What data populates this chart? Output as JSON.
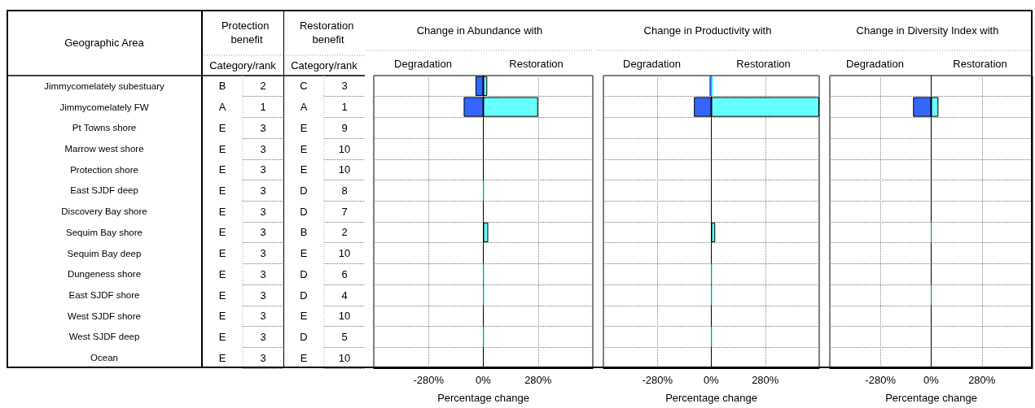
{
  "chart_data": [
    {
      "type": "other",
      "title": "Protection benefit",
      "xlabel": "Category/rank",
      "ylabel": "Geographic Area",
      "categories": [
        null
      ],
      "y_categories": [
        "Jimmycomelately subestuary",
        "Jimmycomelately FW",
        "Pt Towns shore",
        "Marrow west shore",
        "Protection shore",
        "East SJDF deep",
        "Discovery Bay shore",
        "Sequim Bay shore",
        "Sequim Bay deep",
        "Dungeness shore",
        "East SJDF shore",
        "West SJDF shore",
        "West SJDF deep",
        "Ocean"
      ],
      "y2_categories": [
        "B",
        "A",
        "E",
        "E",
        "E",
        "E",
        "E",
        "E",
        "E",
        "E",
        "E",
        "E",
        "E",
        "E"
      ],
      "cell_labels": [
        [
          "2"
        ],
        [
          "1"
        ],
        [
          "3"
        ],
        [
          "3"
        ],
        [
          "3"
        ],
        [
          "3"
        ],
        [
          "3"
        ],
        [
          "3"
        ],
        [
          "3"
        ],
        [
          "3"
        ],
        [
          "3"
        ],
        [
          "3"
        ],
        [
          "3"
        ],
        [
          "3"
        ]
      ]
    },
    {
      "type": "other",
      "title": "Restoration benefit",
      "xlabel": "Category/rank",
      "categories": [
        null
      ],
      "y2_categories": [
        "C",
        "A",
        "E",
        "E",
        "E",
        "D",
        "D",
        "B",
        "E",
        "D",
        "D",
        "E",
        "D",
        "E"
      ],
      "cell_labels": [
        [
          "3"
        ],
        [
          "1"
        ],
        [
          "9"
        ],
        [
          "10"
        ],
        [
          "10"
        ],
        [
          "8"
        ],
        [
          "7"
        ],
        [
          "2"
        ],
        [
          "10"
        ],
        [
          "6"
        ],
        [
          "4"
        ],
        [
          "10"
        ],
        [
          "5"
        ],
        [
          "10"
        ]
      ]
    },
    {
      "type": "bar",
      "orientation": "horizontal",
      "stacked": true,
      "title": "Change in Abundance with",
      "annotations": [
        "Degradation",
        "Restoration"
      ],
      "xlabel": "Percentage change",
      "grid": true,
      "categories": [
        null,
        null,
        null,
        null,
        null,
        null,
        null,
        null,
        null,
        null,
        null,
        null,
        null,
        null
      ],
      "xlim": [
        -560,
        560
      ],
      "xticks": [
        {
          "value": -280,
          "label": "-280%"
        },
        {
          "value": 0,
          "label": "0%"
        },
        {
          "value": 280,
          "label": "280%"
        }
      ],
      "series": [
        {
          "color": "#3366ff",
          "values": [
            -40,
            -100,
            null,
            null,
            null,
            null,
            null,
            null,
            null,
            null,
            null,
            null,
            null,
            null
          ]
        },
        {
          "color": "#66ffff",
          "values": [
            20,
            280,
            null,
            null,
            null,
            5,
            null,
            25,
            null,
            5,
            5,
            null,
            5,
            null
          ]
        }
      ]
    },
    {
      "type": "bar",
      "orientation": "horizontal",
      "stacked": true,
      "title": "Change in Productivity with",
      "annotations": [
        "Degradation",
        "Restoration"
      ],
      "xlabel": "Percentage change",
      "grid": true,
      "categories": [
        null,
        null,
        null,
        null,
        null,
        null,
        null,
        null,
        null,
        null,
        null,
        null,
        null,
        null
      ],
      "xlim": [
        -560,
        560
      ],
      "xticks": [
        {
          "value": -280,
          "label": "-280%"
        },
        {
          "value": 0,
          "label": "0%"
        },
        {
          "value": 280,
          "label": "280%"
        }
      ],
      "series": [
        {
          "color": "#3366ff",
          "values": [
            -10,
            -90,
            null,
            null,
            null,
            null,
            null,
            null,
            null,
            null,
            null,
            null,
            null,
            null
          ]
        },
        {
          "color": "#66ffff",
          "values": [
            10,
            560,
            null,
            null,
            null,
            null,
            null,
            20,
            null,
            5,
            5,
            null,
            5,
            null
          ]
        }
      ]
    },
    {
      "type": "bar",
      "orientation": "horizontal",
      "stacked": true,
      "title": "Change in Diversity Index with",
      "annotations": [
        "Degradation",
        "Restoration"
      ],
      "xlabel": "Percentage change",
      "grid": true,
      "categories": [
        null,
        null,
        null,
        null,
        null,
        null,
        null,
        null,
        null,
        null,
        null,
        null,
        null,
        null
      ],
      "xlim": [
        -560,
        560
      ],
      "xticks": [
        {
          "value": -280,
          "label": "-280%"
        },
        {
          "value": 0,
          "label": "0%"
        },
        {
          "value": 280,
          "label": "280%"
        }
      ],
      "series": [
        {
          "color": "#3366ff",
          "values": [
            null,
            -100,
            null,
            null,
            null,
            null,
            null,
            null,
            null,
            null,
            null,
            null,
            null,
            null
          ]
        },
        {
          "color": "#66ffff",
          "values": [
            null,
            40,
            null,
            null,
            null,
            null,
            null,
            5,
            null,
            null,
            5,
            null,
            null,
            null
          ]
        }
      ]
    }
  ]
}
